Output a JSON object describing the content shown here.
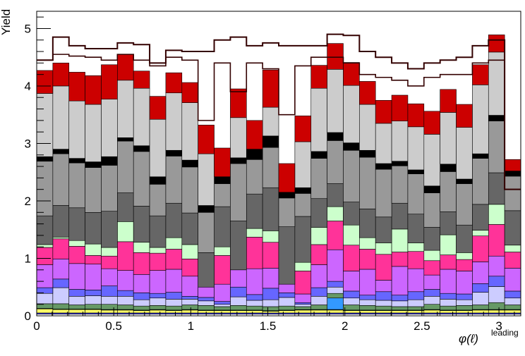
{
  "chart_data": {
    "type": "stacked-histogram",
    "ylabel": "Yield",
    "xlabel_main": "φ(ℓ)",
    "xlabel_sup": "leading",
    "xlim": [
      0,
      3.1416
    ],
    "ylim": [
      0,
      5.3
    ],
    "x_ticks": [
      0,
      0.5,
      1,
      1.5,
      2,
      2.5,
      3
    ],
    "x_tick_labels": [
      "0",
      "0.5",
      "1",
      "1.5",
      "2",
      "2.5",
      "3"
    ],
    "y_ticks": [
      0,
      1,
      2,
      3,
      4,
      5
    ],
    "y_tick_labels": [
      "0",
      "1",
      "2",
      "3",
      "4",
      "5"
    ],
    "bins": 30,
    "layers": [
      {
        "color": "#ffffff",
        "values": [
          0.03,
          0.03,
          0.03,
          0.03,
          0.03,
          0.03,
          0.03,
          0.03,
          0.03,
          0.03,
          0.03,
          0.03,
          0.03,
          0.03,
          0.03,
          0.03,
          0.03,
          0.03,
          0.03,
          0.03,
          0.03,
          0.03,
          0.03,
          0.03,
          0.03,
          0.03,
          0.03,
          0.03,
          0.03,
          0.03
        ]
      },
      {
        "color": "#3333ff",
        "values": [
          0.02,
          0.02,
          0.02,
          0.02,
          0.02,
          0.02,
          0.02,
          0.02,
          0.02,
          0.02,
          0.02,
          0.02,
          0.02,
          0.02,
          0.02,
          0.02,
          0.02,
          0.02,
          0.02,
          0.02,
          0.02,
          0.02,
          0.02,
          0.02,
          0.02,
          0.02,
          0.02,
          0.02,
          0.02,
          0.02
        ]
      },
      {
        "color": "#ffff66",
        "values": [
          0.07,
          0.06,
          0.06,
          0.06,
          0.05,
          0.05,
          0.04,
          0.05,
          0.04,
          0.05,
          0.04,
          0.04,
          0.04,
          0.04,
          0.03,
          0.04,
          0.05,
          0.05,
          0.05,
          0.04,
          0.04,
          0.04,
          0.04,
          0.04,
          0.05,
          0.04,
          0.04,
          0.05,
          0.05,
          0.05
        ]
      },
      {
        "color": "#339966",
        "values": [
          0.01,
          0.01,
          0.01,
          0.01,
          0.01,
          0.01,
          0.01,
          0.01,
          0.01,
          0.01,
          0.01,
          0.01,
          0.01,
          0.01,
          0.01,
          0.01,
          0.01,
          0.01,
          0.01,
          0.01,
          0.01,
          0.01,
          0.01,
          0.01,
          0.01,
          0.01,
          0.01,
          0.01,
          0.01,
          0.01
        ]
      },
      {
        "color": "#3399ff",
        "values": [
          0.0,
          0.0,
          0.0,
          0.0,
          0.0,
          0.0,
          0.0,
          0.0,
          0.0,
          0.0,
          0.0,
          0.0,
          0.0,
          0.0,
          0.0,
          0.0,
          0.0,
          0.0,
          0.2,
          0.0,
          0.0,
          0.0,
          0.0,
          0.0,
          0.0,
          0.0,
          0.0,
          0.0,
          0.0,
          0.0
        ]
      },
      {
        "color": "#669966",
        "values": [
          0.08,
          0.09,
          0.07,
          0.08,
          0.09,
          0.08,
          0.07,
          0.07,
          0.07,
          0.08,
          0.08,
          0.06,
          0.08,
          0.07,
          0.07,
          0.07,
          0.05,
          0.08,
          0.08,
          0.09,
          0.08,
          0.07,
          0.06,
          0.06,
          0.09,
          0.07,
          0.08,
          0.08,
          0.12,
          0.08
        ]
      },
      {
        "color": "#ccccff",
        "values": [
          0.18,
          0.28,
          0.15,
          0.15,
          0.14,
          0.15,
          0.11,
          0.13,
          0.12,
          0.1,
          0.08,
          0.04,
          0.15,
          0.1,
          0.12,
          0.15,
          0.04,
          0.15,
          0.11,
          0.12,
          0.1,
          0.1,
          0.1,
          0.12,
          0.14,
          0.12,
          0.1,
          0.22,
          0.28,
          0.12
        ]
      },
      {
        "color": "#6666ff",
        "values": [
          0.1,
          0.15,
          0.12,
          0.1,
          0.18,
          0.1,
          0.12,
          0.08,
          0.12,
          0.05,
          0.06,
          0.05,
          0.17,
          0.1,
          0.2,
          0.08,
          0.03,
          0.15,
          0.1,
          0.12,
          0.08,
          0.15,
          0.1,
          0.14,
          0.12,
          0.1,
          0.1,
          0.15,
          0.18,
          0.12
        ]
      },
      {
        "color": "#cc66ff",
        "values": [
          0.4,
          0.35,
          0.45,
          0.45,
          0.3,
          0.35,
          0.32,
          0.4,
          0.4,
          0.35,
          0.18,
          0.3,
          0.3,
          0.45,
          0.35,
          0.15,
          0.15,
          0.4,
          0.55,
          0.35,
          0.45,
          0.2,
          0.5,
          0.4,
          0.25,
          0.42,
          0.4,
          0.38,
          0.35,
          0.4
        ]
      },
      {
        "color": "#ff3399",
        "values": [
          0.3,
          0.35,
          0.3,
          0.15,
          0.22,
          0.5,
          0.38,
          0.3,
          0.35,
          0.3,
          0.0,
          0.5,
          0.0,
          0.55,
          0.45,
          0.0,
          0.4,
          0.35,
          0.5,
          0.45,
          0.35,
          0.45,
          0.25,
          0.3,
          0.25,
          0.25,
          0.2,
          0.45,
          0.55,
          0.28
        ]
      },
      {
        "color": "#ccffcc",
        "values": [
          0.05,
          0.03,
          0.1,
          0.2,
          0.15,
          0.35,
          0.18,
          0.1,
          0.2,
          0.25,
          0.0,
          0.15,
          0.0,
          0.15,
          0.2,
          0.0,
          0.15,
          0.3,
          0.25,
          0.35,
          0.2,
          0.2,
          0.4,
          0.15,
          0.18,
          0.35,
          0.12,
          0.1,
          0.35,
          0.12
        ]
      },
      {
        "color": "#666666",
        "values": [
          0.5,
          0.55,
          0.57,
          0.55,
          0.63,
          0.5,
          0.63,
          0.55,
          0.6,
          0.55,
          0.6,
          0.7,
          0.85,
          0.6,
          0.75,
          1.0,
          0.8,
          0.5,
          0.4,
          0.4,
          0.5,
          0.45,
          0.45,
          0.5,
          0.4,
          0.4,
          0.48,
          0.45,
          0.55,
          0.6
        ]
      },
      {
        "color": "#999999",
        "values": [
          0.95,
          0.9,
          0.78,
          0.78,
          0.8,
          0.9,
          0.95,
          0.55,
          0.82,
          0.8,
          0.7,
          0.4,
          1.0,
          0.6,
          0.7,
          0.5,
          0.4,
          0.7,
          0.75,
          0.9,
          0.9,
          0.83,
          0.65,
          0.7,
          0.6,
          0.7,
          0.72,
          0.8,
          0.9,
          0.6
        ]
      },
      {
        "color": "#000000",
        "values": [
          0.08,
          0.08,
          0.08,
          0.1,
          0.15,
          0.06,
          0.1,
          0.13,
          0.1,
          0.12,
          0.12,
          0.12,
          0.1,
          0.18,
          0.2,
          0.1,
          0.1,
          0.12,
          0.14,
          0.13,
          0.12,
          0.1,
          0.08,
          0.07,
          0.12,
          0.13,
          0.08,
          0.08,
          0.1,
          0.09
        ]
      },
      {
        "color": "#cccccc",
        "values": [
          1.1,
          1.1,
          1.0,
          1.0,
          1.0,
          1.0,
          1.0,
          1.0,
          1.0,
          1.0,
          0.9,
          0.0,
          0.7,
          0.0,
          0.5,
          0.0,
          0.8,
          1.1,
          1.1,
          1.0,
          0.8,
          0.7,
          0.7,
          0.75,
          0.9,
          0.9,
          0.9,
          1.2,
          1.1,
          0.0
        ]
      },
      {
        "color": "#cc0000",
        "values": [
          0.4,
          0.4,
          0.5,
          0.5,
          0.6,
          0.45,
          0.3,
          0.4,
          0.35,
          0.35,
          0.5,
          0.5,
          0.5,
          0.5,
          0.65,
          0.5,
          0.45,
          0.4,
          0.45,
          0.4,
          0.4,
          0.4,
          0.45,
          0.4,
          0.4,
          0.4,
          0.4,
          0.35,
          0.3,
          0.2
        ]
      }
    ],
    "total_outline": [
      4.45,
      4.85,
      4.7,
      4.65,
      4.65,
      4.75,
      4.72,
      4.4,
      4.62,
      4.6,
      4.6,
      4.8,
      4.85,
      4.7,
      4.75,
      4.7,
      4.7,
      4.7,
      4.9,
      4.88,
      4.6,
      4.5,
      4.4,
      4.3,
      4.4,
      4.45,
      4.5,
      4.7,
      4.8,
      2.2
    ],
    "hatch_outline": [
      4.45,
      4.55,
      4.52,
      4.5,
      4.45,
      4.55,
      4.45,
      4.35,
      4.5,
      4.45,
      3.4,
      4.4,
      3.9,
      4.4,
      4.3,
      3.5,
      4.35,
      4.5,
      4.5,
      4.4,
      4.2,
      4.15,
      4.1,
      4.0,
      4.15,
      4.2,
      4.2,
      4.4,
      4.45,
      2.2
    ]
  }
}
